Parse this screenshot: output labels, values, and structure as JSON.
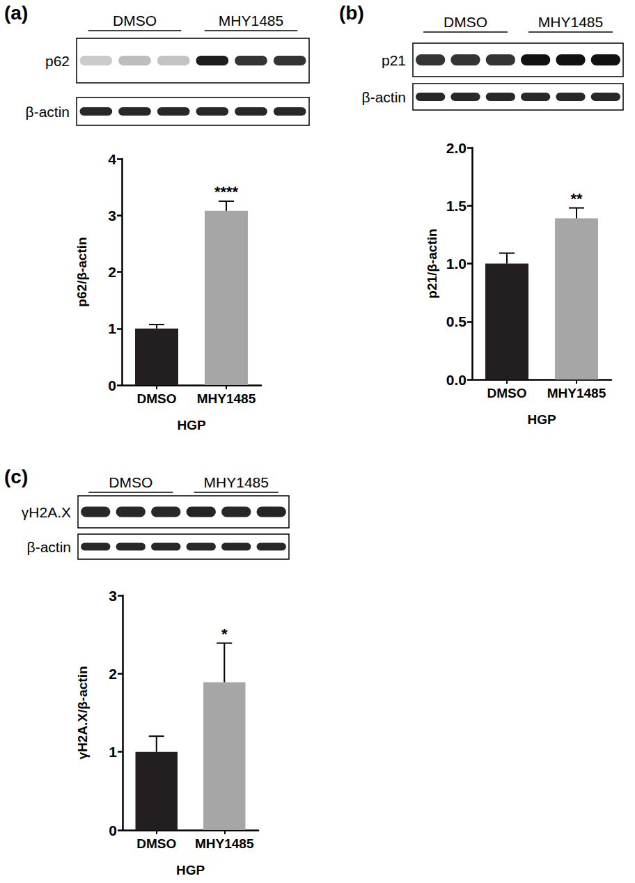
{
  "chart_data": [
    {
      "type": "bar",
      "panel": "(a)",
      "blot": {
        "groups": [
          "DMSO",
          "MHY1485"
        ],
        "rows": [
          "p62",
          "β-actin"
        ]
      },
      "categories": [
        "DMSO",
        "MHY1485"
      ],
      "values": [
        1.0,
        3.08
      ],
      "errors": [
        0.07,
        0.17
      ],
      "colors": [
        "#231f20",
        "#a6a6a6"
      ],
      "significance": {
        "category": "MHY1485",
        "label": "****"
      },
      "xlabel": "HGP",
      "ylabel": "p62/β-actin",
      "ylim": [
        0,
        4
      ],
      "yticks": [
        0,
        1,
        2,
        3,
        4
      ],
      "grid": false
    },
    {
      "type": "bar",
      "panel": "(b)",
      "blot": {
        "groups": [
          "DMSO",
          "MHY1485"
        ],
        "rows": [
          "p21",
          "β-actin"
        ]
      },
      "categories": [
        "DMSO",
        "MHY1485"
      ],
      "values": [
        1.0,
        1.39
      ],
      "errors": [
        0.09,
        0.09
      ],
      "colors": [
        "#231f20",
        "#a6a6a6"
      ],
      "significance": {
        "category": "MHY1485",
        "label": "**"
      },
      "xlabel": "HGP",
      "ylabel": "p21/β-actin",
      "ylim": [
        0,
        2
      ],
      "yticks": [
        {
          "value": 0,
          "label": "0.0"
        },
        {
          "value": 0.5,
          "label": "0.5"
        },
        {
          "value": 1,
          "label": "1.0"
        },
        {
          "value": 1.5,
          "label": "1.5"
        },
        {
          "value": 2,
          "label": "2.0"
        }
      ],
      "grid": false
    },
    {
      "type": "bar",
      "panel": "(c)",
      "blot": {
        "groups": [
          "DMSO",
          "MHY1485"
        ],
        "rows": [
          "γH2A.X",
          "β-actin"
        ]
      },
      "categories": [
        "DMSO",
        "MHY1485"
      ],
      "values": [
        1.0,
        1.89
      ],
      "errors": [
        0.2,
        0.5
      ],
      "colors": [
        "#231f20",
        "#a6a6a6"
      ],
      "significance": {
        "category": "MHY1485",
        "label": "*"
      },
      "xlabel": "HGP",
      "ylabel": "γH2A.X/β-actin",
      "ylim": [
        0,
        3
      ],
      "yticks": [
        0,
        1,
        2,
        3
      ],
      "grid": false
    }
  ]
}
